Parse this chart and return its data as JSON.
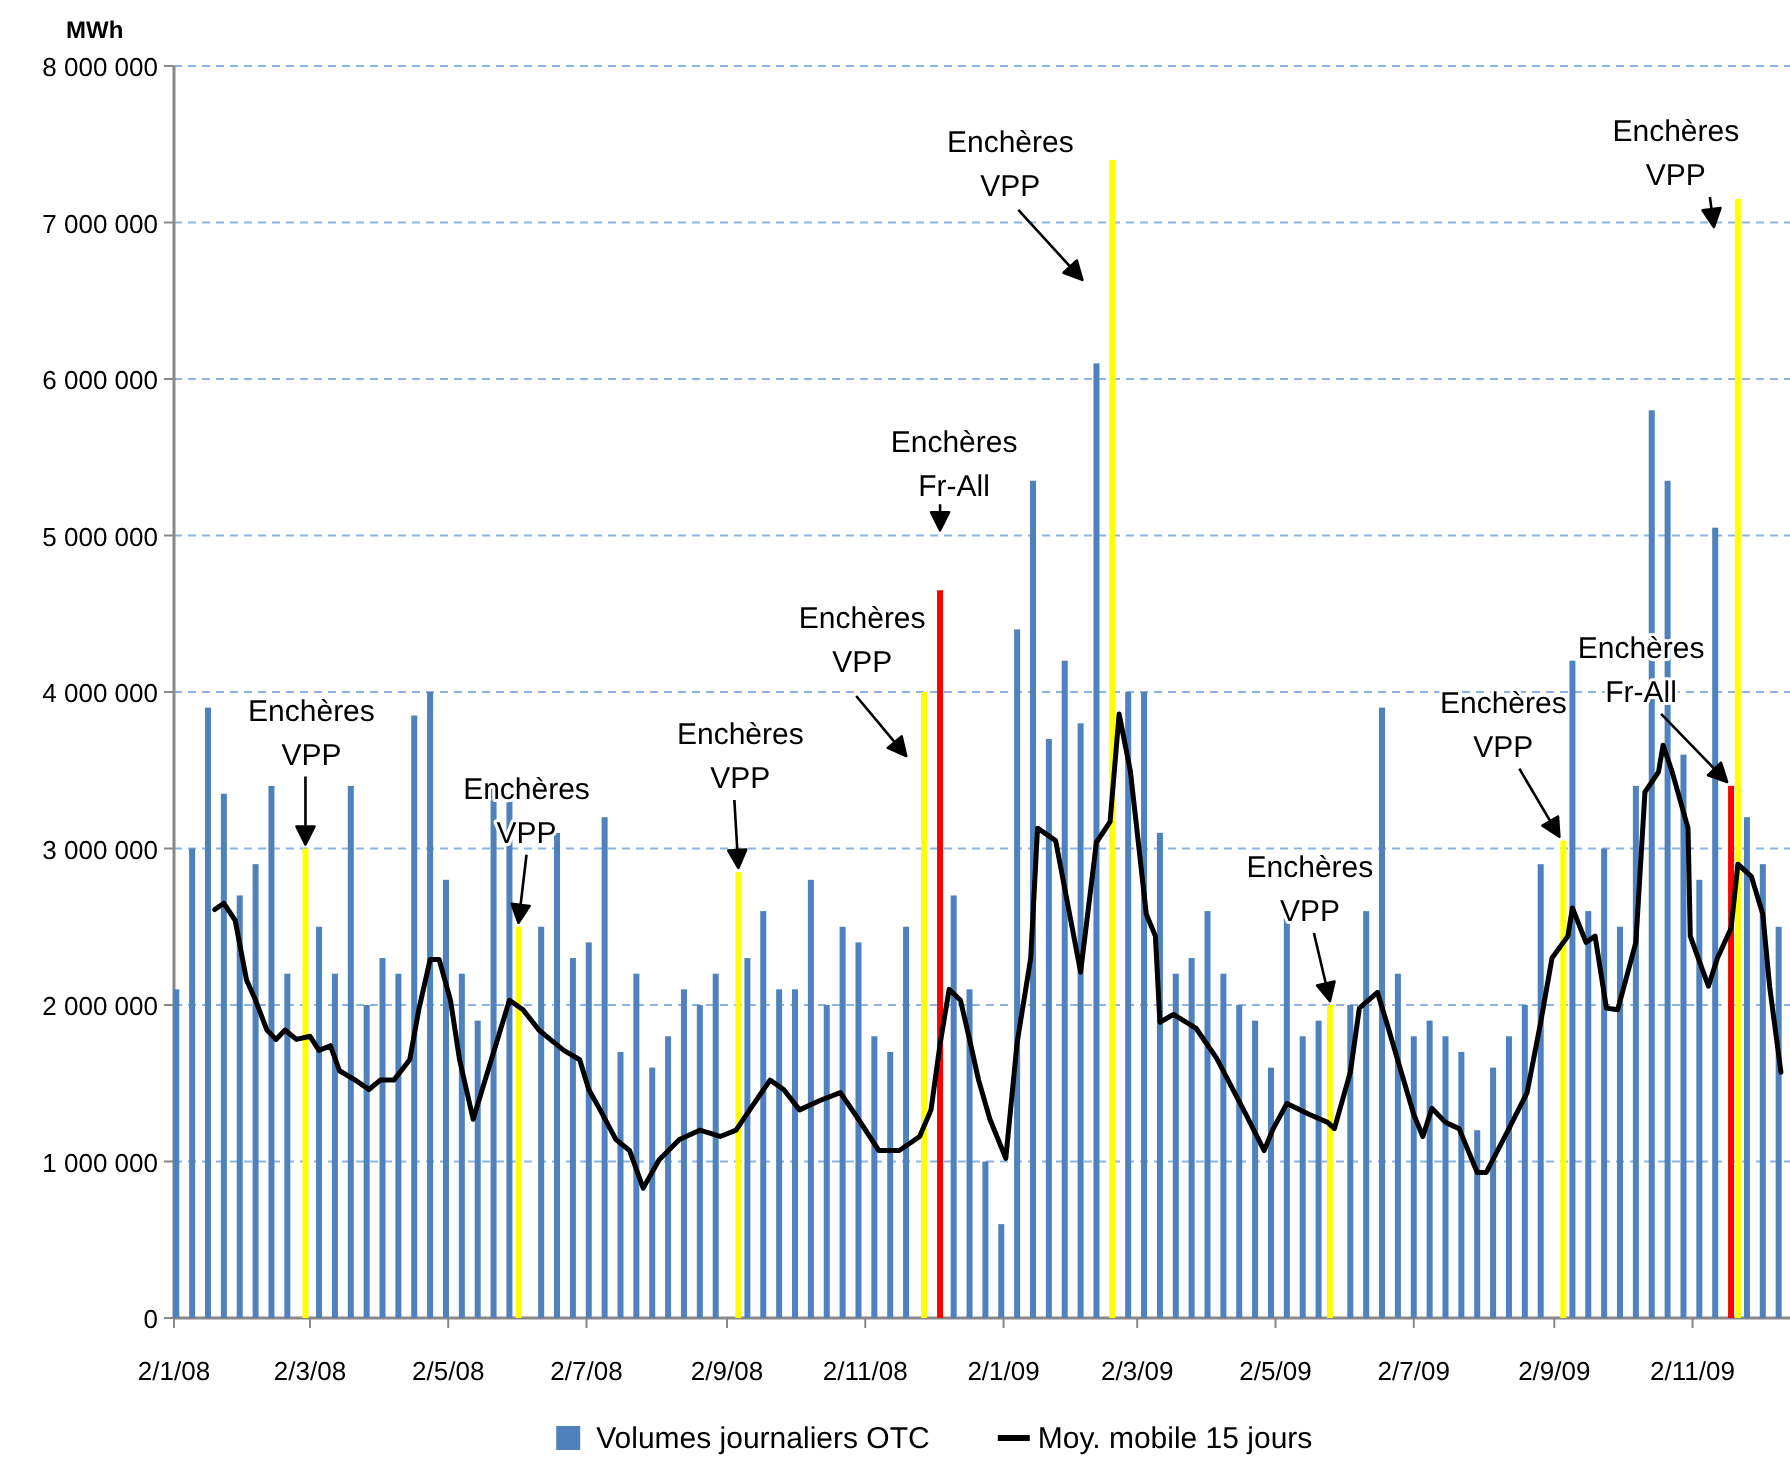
{
  "chart_data": {
    "type": "bar",
    "ylabel": "MWh",
    "xlim": [
      "2008-01-02",
      "2009-12-15"
    ],
    "xticks": [
      {
        "value": "2008-01-02",
        "label": "2/1/08"
      },
      {
        "value": "2008-03-02",
        "label": "2/3/08"
      },
      {
        "value": "2008-05-02",
        "label": "2/5/08"
      },
      {
        "value": "2008-07-02",
        "label": "2/7/08"
      },
      {
        "value": "2008-09-02",
        "label": "2/9/08"
      },
      {
        "value": "2008-11-02",
        "label": "2/11/08"
      },
      {
        "value": "2009-01-02",
        "label": "2/1/09"
      },
      {
        "value": "2009-03-02",
        "label": "2/3/09"
      },
      {
        "value": "2009-05-02",
        "label": "2/5/09"
      },
      {
        "value": "2009-07-02",
        "label": "2/7/09"
      },
      {
        "value": "2009-09-02",
        "label": "2/9/09"
      },
      {
        "value": "2009-11-02",
        "label": "2/11/09"
      }
    ],
    "ylim": [
      0,
      8000000
    ],
    "yticks": [
      {
        "value": 0,
        "label": "0"
      },
      {
        "value": 1000000,
        "label": "1 000 000"
      },
      {
        "value": 2000000,
        "label": "2 000 000"
      },
      {
        "value": 3000000,
        "label": "3 000 000"
      },
      {
        "value": 4000000,
        "label": "4 000 000"
      },
      {
        "value": 5000000,
        "label": "5 000 000"
      },
      {
        "value": 6000000,
        "label": "6 000 000"
      },
      {
        "value": 7000000,
        "label": "7 000 000"
      },
      {
        "value": 8000000,
        "label": "8 000 000"
      }
    ],
    "grid": "y",
    "legend": "bottom",
    "series": [
      {
        "name": "Volumes journaliers OTC",
        "type": "bar",
        "color": "#4f81bd",
        "x": [
          "2008-01-03",
          "2008-01-10",
          "2008-01-17",
          "2008-01-24",
          "2008-01-31",
          "2008-02-07",
          "2008-02-14",
          "2008-02-21",
          "2008-02-29",
          "2008-03-06",
          "2008-03-13",
          "2008-03-20",
          "2008-03-27",
          "2008-04-03",
          "2008-04-10",
          "2008-04-17",
          "2008-04-24",
          "2008-05-01",
          "2008-05-08",
          "2008-05-15",
          "2008-05-22",
          "2008-05-29",
          "2008-06-02",
          "2008-06-12",
          "2008-06-19",
          "2008-06-26",
          "2008-07-03",
          "2008-07-10",
          "2008-07-17",
          "2008-07-24",
          "2008-07-31",
          "2008-08-07",
          "2008-08-14",
          "2008-08-21",
          "2008-08-28",
          "2008-09-07",
          "2008-09-11",
          "2008-09-18",
          "2008-09-25",
          "2008-10-02",
          "2008-10-09",
          "2008-10-16",
          "2008-10-23",
          "2008-10-30",
          "2008-11-06",
          "2008-11-13",
          "2008-11-20",
          "2008-11-28",
          "2008-12-05",
          "2008-12-11",
          "2008-12-18",
          "2008-12-25",
          "2009-01-01",
          "2009-01-08",
          "2009-01-15",
          "2009-01-22",
          "2009-01-29",
          "2009-02-05",
          "2009-02-12",
          "2009-02-19",
          "2009-02-26",
          "2009-03-05",
          "2009-03-12",
          "2009-03-19",
          "2009-03-26",
          "2009-04-02",
          "2009-04-09",
          "2009-04-16",
          "2009-04-23",
          "2009-04-30",
          "2009-05-07",
          "2009-05-14",
          "2009-05-21",
          "2009-05-26",
          "2009-06-04",
          "2009-06-11",
          "2009-06-18",
          "2009-06-25",
          "2009-07-02",
          "2009-07-09",
          "2009-07-16",
          "2009-07-23",
          "2009-07-30",
          "2009-08-06",
          "2009-08-13",
          "2009-08-20",
          "2009-08-27",
          "2009-09-06",
          "2009-09-10",
          "2009-09-17",
          "2009-09-24",
          "2009-10-01",
          "2009-10-08",
          "2009-10-15",
          "2009-10-22",
          "2009-10-29",
          "2009-11-05",
          "2009-11-12",
          "2009-11-19",
          "2009-11-22",
          "2009-11-26",
          "2009-12-03",
          "2009-12-10"
        ],
        "values": [
          2100000,
          3000000,
          3900000,
          3350000,
          2700000,
          2900000,
          3400000,
          2200000,
          3000000,
          2500000,
          2200000,
          3400000,
          2000000,
          2300000,
          2200000,
          3850000,
          4000000,
          2800000,
          2200000,
          1900000,
          3400000,
          3300000,
          2500000,
          2500000,
          3100000,
          2300000,
          2400000,
          3200000,
          1700000,
          2200000,
          1600000,
          1800000,
          2100000,
          2000000,
          2200000,
          2850000,
          2300000,
          2600000,
          2100000,
          2100000,
          2800000,
          2000000,
          2500000,
          2400000,
          1800000,
          1700000,
          2500000,
          4000000,
          4650000,
          2700000,
          2100000,
          1000000,
          600000,
          4400000,
          5350000,
          3700000,
          4200000,
          3800000,
          6100000,
          7400000,
          4000000,
          4000000,
          3100000,
          2200000,
          2300000,
          2600000,
          2200000,
          2000000,
          1900000,
          1600000,
          2600000,
          1800000,
          1900000,
          2000000,
          2000000,
          2600000,
          3900000,
          2200000,
          1800000,
          1900000,
          1800000,
          1700000,
          1200000,
          1600000,
          1800000,
          2000000,
          2900000,
          3050000,
          4200000,
          2600000,
          3000000,
          2500000,
          3400000,
          5800000,
          5350000,
          3600000,
          2800000,
          5050000,
          3400000,
          7150000,
          3200000,
          2900000,
          2500000
        ],
        "colors": [
          "#4f81bd",
          "#4f81bd",
          "#4f81bd",
          "#4f81bd",
          "#4f81bd",
          "#4f81bd",
          "#4f81bd",
          "#4f81bd",
          "#ffff00",
          "#4f81bd",
          "#4f81bd",
          "#4f81bd",
          "#4f81bd",
          "#4f81bd",
          "#4f81bd",
          "#4f81bd",
          "#4f81bd",
          "#4f81bd",
          "#4f81bd",
          "#4f81bd",
          "#4f81bd",
          "#4f81bd",
          "#ffff00",
          "#4f81bd",
          "#4f81bd",
          "#4f81bd",
          "#4f81bd",
          "#4f81bd",
          "#4f81bd",
          "#4f81bd",
          "#4f81bd",
          "#4f81bd",
          "#4f81bd",
          "#4f81bd",
          "#4f81bd",
          "#ffff00",
          "#4f81bd",
          "#4f81bd",
          "#4f81bd",
          "#4f81bd",
          "#4f81bd",
          "#4f81bd",
          "#4f81bd",
          "#4f81bd",
          "#4f81bd",
          "#4f81bd",
          "#4f81bd",
          "#ffff00",
          "#ff0000",
          "#4f81bd",
          "#4f81bd",
          "#4f81bd",
          "#4f81bd",
          "#4f81bd",
          "#4f81bd",
          "#4f81bd",
          "#4f81bd",
          "#4f81bd",
          "#4f81bd",
          "#ffff00",
          "#4f81bd",
          "#4f81bd",
          "#4f81bd",
          "#4f81bd",
          "#4f81bd",
          "#4f81bd",
          "#4f81bd",
          "#4f81bd",
          "#4f81bd",
          "#4f81bd",
          "#4f81bd",
          "#4f81bd",
          "#4f81bd",
          "#ffff00",
          "#4f81bd",
          "#4f81bd",
          "#4f81bd",
          "#4f81bd",
          "#4f81bd",
          "#4f81bd",
          "#4f81bd",
          "#4f81bd",
          "#4f81bd",
          "#4f81bd",
          "#4f81bd",
          "#4f81bd",
          "#4f81bd",
          "#ffff00",
          "#4f81bd",
          "#4f81bd",
          "#4f81bd",
          "#4f81bd",
          "#4f81bd",
          "#4f81bd",
          "#4f81bd",
          "#4f81bd",
          "#4f81bd",
          "#4f81bd",
          "#ff0000",
          "#ffff00",
          "#4f81bd",
          "#4f81bd",
          "#4f81bd"
        ]
      },
      {
        "name": "Moy. mobile 15 jours",
        "type": "line",
        "color": "#000000",
        "x": [
          "2008-01-20",
          "2008-01-24",
          "2008-01-29",
          "2008-02-03",
          "2008-02-07",
          "2008-02-12",
          "2008-02-16",
          "2008-02-20",
          "2008-02-25",
          "2008-03-02",
          "2008-03-06",
          "2008-03-11",
          "2008-03-15",
          "2008-03-22",
          "2008-03-28",
          "2008-04-02",
          "2008-04-08",
          "2008-04-15",
          "2008-04-19",
          "2008-04-24",
          "2008-04-28",
          "2008-05-03",
          "2008-05-07",
          "2008-05-13",
          "2008-05-25",
          "2008-05-29",
          "2008-06-04",
          "2008-06-11",
          "2008-06-16",
          "2008-06-22",
          "2008-06-29",
          "2008-07-03",
          "2008-07-08",
          "2008-07-15",
          "2008-07-21",
          "2008-07-27",
          "2008-08-03",
          "2008-08-12",
          "2008-08-21",
          "2008-08-30",
          "2008-09-06",
          "2008-09-12",
          "2008-09-21",
          "2008-09-27",
          "2008-10-04",
          "2008-10-13",
          "2008-10-22",
          "2008-10-30",
          "2008-11-08",
          "2008-11-17",
          "2008-11-26",
          "2008-12-01",
          "2008-12-05",
          "2008-12-09",
          "2008-12-14",
          "2008-12-18",
          "2008-12-22",
          "2008-12-27",
          "2009-01-03",
          "2009-01-08",
          "2009-01-14",
          "2009-01-17",
          "2009-01-25",
          "2009-02-02",
          "2009-02-05",
          "2009-02-12",
          "2009-02-18",
          "2009-02-22",
          "2009-02-27",
          "2009-03-06",
          "2009-03-10",
          "2009-03-12",
          "2009-03-18",
          "2009-03-28",
          "2009-04-06",
          "2009-04-19",
          "2009-04-27",
          "2009-05-01",
          "2009-05-07",
          "2009-05-17",
          "2009-05-25",
          "2009-05-28",
          "2009-06-04",
          "2009-06-08",
          "2009-06-16",
          "2009-06-20",
          "2009-07-02",
          "2009-07-06",
          "2009-07-10",
          "2009-07-16",
          "2009-07-22",
          "2009-07-30",
          "2009-08-03",
          "2009-08-13",
          "2009-08-21",
          "2009-08-27",
          "2009-09-01",
          "2009-09-08",
          "2009-09-10",
          "2009-09-16",
          "2009-09-20",
          "2009-09-25",
          "2009-09-30",
          "2009-10-08",
          "2009-10-12",
          "2009-10-18",
          "2009-10-20",
          "2009-10-24",
          "2009-10-31",
          "2009-11-01",
          "2009-11-09",
          "2009-11-13",
          "2009-11-19",
          "2009-11-22",
          "2009-11-28",
          "2009-12-03",
          "2009-12-06",
          "2009-12-11"
        ],
        "values": [
          2610000,
          2650000,
          2540000,
          2160000,
          2030000,
          1840000,
          1780000,
          1840000,
          1780000,
          1800000,
          1710000,
          1740000,
          1580000,
          1520000,
          1460000,
          1520000,
          1520000,
          1650000,
          1970000,
          2290000,
          2290000,
          2030000,
          1650000,
          1270000,
          1840000,
          2030000,
          1970000,
          1840000,
          1780000,
          1710000,
          1650000,
          1460000,
          1330000,
          1140000,
          1070000,
          830000,
          1010000,
          1140000,
          1200000,
          1160000,
          1200000,
          1330000,
          1520000,
          1460000,
          1330000,
          1390000,
          1440000,
          1270000,
          1070000,
          1070000,
          1160000,
          1330000,
          1750000,
          2100000,
          2030000,
          1780000,
          1520000,
          1270000,
          1020000,
          1760000,
          2300000,
          3130000,
          3050000,
          2440000,
          2210000,
          3040000,
          3170000,
          3860000,
          3490000,
          2580000,
          2440000,
          1890000,
          1940000,
          1850000,
          1660000,
          1300000,
          1070000,
          1210000,
          1370000,
          1300000,
          1250000,
          1210000,
          1570000,
          1980000,
          2080000,
          1890000,
          1300000,
          1160000,
          1340000,
          1250000,
          1210000,
          930000,
          930000,
          1210000,
          1440000,
          1890000,
          2300000,
          2440000,
          2620000,
          2400000,
          2440000,
          1980000,
          1970000,
          2400000,
          3360000,
          3490000,
          3660000,
          3490000,
          3130000,
          2440000,
          2120000,
          2300000,
          2490000,
          2900000,
          2820000,
          2580000,
          2120000,
          1570000
        ]
      }
    ],
    "annotations": [
      {
        "text": "Enchères\nVPP",
        "x": "2008-02-29",
        "y": 3000000
      },
      {
        "text": "Enchères\nVPP",
        "x": "2008-06-02",
        "y": 2500000
      },
      {
        "text": "Enchères\nVPP",
        "x": "2008-09-07",
        "y": 2850000
      },
      {
        "text": "Enchères\nVPP",
        "x": "2008-11-28",
        "y": 4000000
      },
      {
        "text": "Enchères\nFr-All",
        "x": "2008-12-05",
        "y": 4650000
      },
      {
        "text": "Enchères\nVPP",
        "x": "2009-02-19",
        "y": 7400000
      },
      {
        "text": "Enchères\nVPP",
        "x": "2009-05-26",
        "y": 2000000
      },
      {
        "text": "Enchères\nVPP",
        "x": "2009-09-06",
        "y": 3050000
      },
      {
        "text": "Enchères\nVPP",
        "x": "2009-11-22",
        "y": 7150000
      },
      {
        "text": "Enchères\nFr-All",
        "x": "2009-11-19",
        "y": 3400000
      }
    ]
  }
}
